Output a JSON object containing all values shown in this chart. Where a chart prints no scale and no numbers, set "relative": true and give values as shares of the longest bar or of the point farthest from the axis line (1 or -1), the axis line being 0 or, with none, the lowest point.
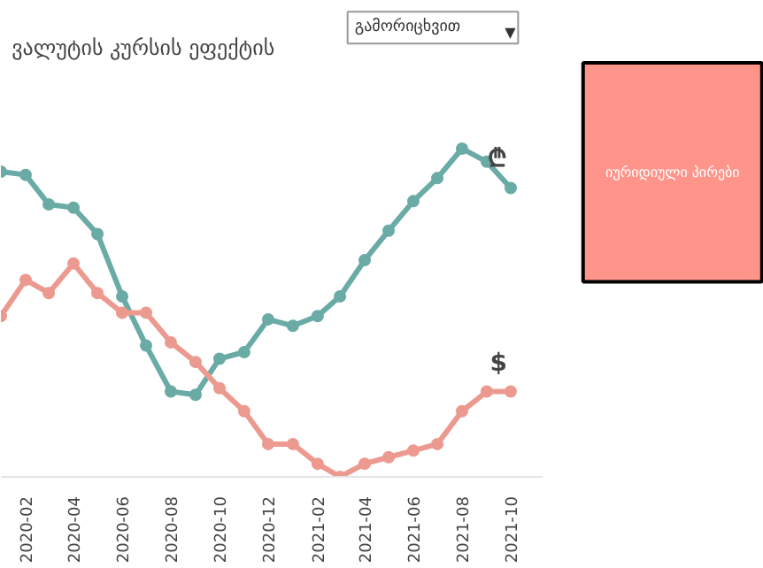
{
  "chart_data": [
    {
      "type": "line",
      "title": "ვალუტის კურსის ეფექტის",
      "annotations": [
        "გამორიცხვით",
        "▼"
      ],
      "xlim": [
        "2020-01",
        "2021-11-10"
      ],
      "relative": true,
      "marker": "circle",
      "grid": false,
      "legend": false,
      "tick_labels": "x",
      "x": [
        "2020-01",
        "2020-02",
        "2020-03",
        "2020-04",
        "2020-05",
        "2020-06",
        "2020-07",
        "2020-08",
        "2020-09",
        "2020-10",
        "2020-11",
        "2020-12",
        "2021-01",
        "2021-02",
        "2021-03",
        "2021-04",
        "2021-05",
        "2021-06",
        "2021-07",
        "2021-08",
        "2021-09",
        "2021-10"
      ],
      "xticks": [
        "2020-02",
        "2020-04",
        "2020-06",
        "2020-08",
        "2020-10",
        "2020-12",
        "2021-02",
        "2021-04",
        "2021-06",
        "2021-08",
        "2021-10"
      ],
      "series": [
        {
          "name": "₾",
          "color": "#6aaba6",
          "values": [
            0.93,
            0.92,
            0.83,
            0.82,
            0.74,
            0.55,
            0.4,
            0.26,
            0.25,
            0.36,
            0.38,
            0.48,
            0.46,
            0.49,
            0.55,
            0.66,
            0.75,
            0.84,
            0.91,
            1,
            0.96,
            0.88
          ]
        },
        {
          "name": "$",
          "color": "#ec9a90",
          "values": [
            0.49,
            0.6,
            0.56,
            0.65,
            0.56,
            0.5,
            0.5,
            0.41,
            0.35,
            0.27,
            0.2,
            0.1,
            0.1,
            0.04,
            0,
            0.04,
            0.06,
            0.08,
            0.1,
            0.2,
            0.26,
            0.26
          ]
        }
      ]
    },
    {
      "type": "other",
      "annotations": [
        "იურიდიული პირები"
      ]
    }
  ]
}
